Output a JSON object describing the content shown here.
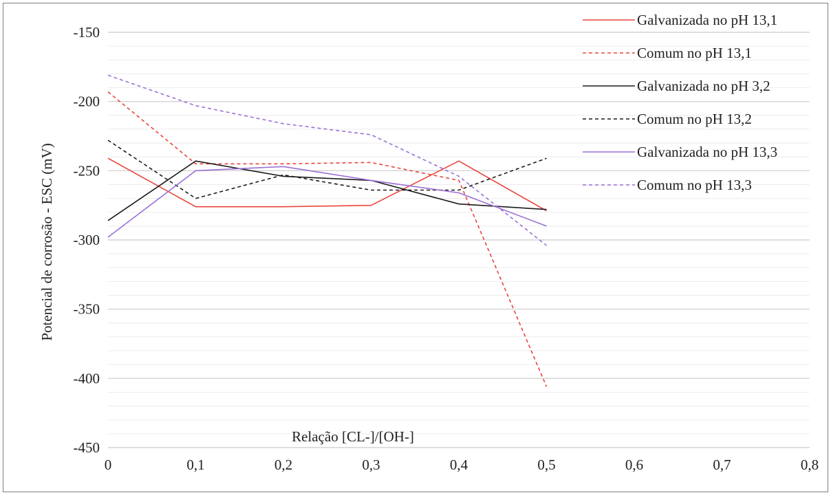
{
  "chart_data": {
    "type": "line",
    "title": "",
    "xlabel": "Relação [CL-]/[OH-]",
    "ylabel": "Potencial de corrosão - ESC (mV)",
    "xlim": [
      0,
      0.8
    ],
    "ylim": [
      -450,
      -150
    ],
    "x_ticks": [
      {
        "value": 0,
        "label": "0"
      },
      {
        "value": 0.1,
        "label": "0,1"
      },
      {
        "value": 0.2,
        "label": "0,2"
      },
      {
        "value": 0.3,
        "label": "0,3"
      },
      {
        "value": 0.4,
        "label": "0,4"
      },
      {
        "value": 0.5,
        "label": "0,5"
      },
      {
        "value": 0.6,
        "label": "0,6"
      },
      {
        "value": 0.7,
        "label": "0,7"
      },
      {
        "value": 0.8,
        "label": "0,8"
      }
    ],
    "y_ticks": [
      {
        "value": -150,
        "label": "-150"
      },
      {
        "value": -200,
        "label": "-200"
      },
      {
        "value": -250,
        "label": "-250"
      },
      {
        "value": -300,
        "label": "-300"
      },
      {
        "value": -350,
        "label": "-350"
      },
      {
        "value": -400,
        "label": "-400"
      },
      {
        "value": -450,
        "label": "-450"
      }
    ],
    "grid": "horizontal major and minor",
    "legend_position": "right",
    "x": [
      0,
      0.1,
      0.2,
      0.3,
      0.4,
      0.5
    ],
    "series": [
      {
        "name": "Galvanizada no pH 13,1",
        "color": "#e8453c",
        "dash": "solid",
        "values": [
          -241,
          -276,
          -276,
          -275,
          -243,
          -279
        ]
      },
      {
        "name": "Comum no pH 13,1",
        "color": "#e8453c",
        "dash": "dashed",
        "values": [
          -193,
          -245,
          -245,
          -244,
          -257,
          -406
        ]
      },
      {
        "name": "Galvanizada no pH 3,2",
        "color": "#1a1a1a",
        "dash": "solid",
        "values": [
          -286,
          -243,
          -254,
          -257,
          -274,
          -278
        ]
      },
      {
        "name": "Comum no pH 13,2",
        "color": "#1a1a1a",
        "dash": "dashed",
        "values": [
          -228,
          -270,
          -253,
          -264,
          -264,
          -241
        ]
      },
      {
        "name": "Galvanizada no pH 13,3",
        "color": "#9a6fd6",
        "dash": "solid",
        "values": [
          -298,
          -250,
          -247,
          -257,
          -266,
          -290
        ]
      },
      {
        "name": "Comum no pH 13,3",
        "color": "#9a6fd6",
        "dash": "dashed",
        "values": [
          -181,
          -203,
          -216,
          -224,
          -254,
          -304
        ]
      }
    ]
  }
}
